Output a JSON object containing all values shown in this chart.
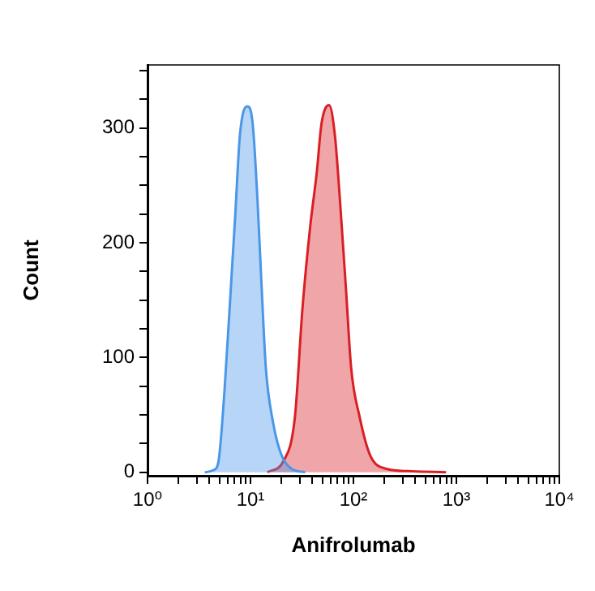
{
  "chart_data": {
    "type": "area",
    "xlabel": "Anifrolumab",
    "ylabel": "Count",
    "log": "x",
    "grid": false,
    "legend": false,
    "marker": "none",
    "line_style": "solid",
    "xlim": [
      1,
      10000
    ],
    "ylim": [
      -3,
      355
    ],
    "xticks": [
      {
        "value": 1,
        "label": "10⁰"
      },
      {
        "value": 2,
        "label": null
      },
      {
        "value": 3,
        "label": null
      },
      {
        "value": 4,
        "label": null
      },
      {
        "value": 5,
        "label": null
      },
      {
        "value": 6,
        "label": null
      },
      {
        "value": 7,
        "label": null
      },
      {
        "value": 8,
        "label": null
      },
      {
        "value": 9,
        "label": null
      },
      {
        "value": 10,
        "label": "10¹"
      },
      {
        "value": 20,
        "label": null
      },
      {
        "value": 30,
        "label": null
      },
      {
        "value": 40,
        "label": null
      },
      {
        "value": 50,
        "label": null
      },
      {
        "value": 60,
        "label": null
      },
      {
        "value": 70,
        "label": null
      },
      {
        "value": 80,
        "label": null
      },
      {
        "value": 90,
        "label": null
      },
      {
        "value": 100,
        "label": "10²"
      },
      {
        "value": 200,
        "label": null
      },
      {
        "value": 300,
        "label": null
      },
      {
        "value": 400,
        "label": null
      },
      {
        "value": 500,
        "label": null
      },
      {
        "value": 600,
        "label": null
      },
      {
        "value": 700,
        "label": null
      },
      {
        "value": 800,
        "label": null
      },
      {
        "value": 900,
        "label": null
      },
      {
        "value": 1000,
        "label": "10³"
      },
      {
        "value": 2000,
        "label": null
      },
      {
        "value": 3000,
        "label": null
      },
      {
        "value": 4000,
        "label": null
      },
      {
        "value": 5000,
        "label": null
      },
      {
        "value": 6000,
        "label": null
      },
      {
        "value": 7000,
        "label": null
      },
      {
        "value": 8000,
        "label": null
      },
      {
        "value": 9000,
        "label": null
      },
      {
        "value": 10000,
        "label": "10⁴"
      }
    ],
    "yticks": [
      0,
      {
        "value": 25,
        "label": null
      },
      {
        "value": 50,
        "label": null
      },
      {
        "value": 75,
        "label": null
      },
      100,
      {
        "value": 125,
        "label": null
      },
      {
        "value": 150,
        "label": null
      },
      {
        "value": 175,
        "label": null
      },
      200,
      {
        "value": 225,
        "label": null
      },
      {
        "value": 250,
        "label": null
      },
      {
        "value": 275,
        "label": null
      },
      300,
      {
        "value": 325,
        "label": null
      },
      {
        "value": 350,
        "label": null
      }
    ],
    "series": [
      {
        "color": "#4a97e8",
        "x": [
          3.6,
          4.4,
          4.9,
          5.6,
          6.5,
          7.1,
          7.9,
          9.3,
          10.5,
          11.7,
          12.9,
          14.1,
          16.6,
          20,
          25,
          34
        ],
        "values": [
          0,
          2,
          10,
          72,
          166,
          223,
          294,
          319,
          304,
          237,
          157,
          91,
          43,
          15,
          3,
          0
        ]
      },
      {
        "color": "#d91f26",
        "x": [
          14.6,
          21,
          27,
          32,
          38,
          44,
          49,
          58,
          66,
          74,
          85,
          95,
          115,
          145,
          209,
          339,
          794
        ],
        "values": [
          0,
          10,
          48,
          143,
          214,
          261,
          304,
          320,
          294,
          237,
          157,
          91,
          48,
          15,
          3,
          1,
          0
        ]
      }
    ]
  }
}
